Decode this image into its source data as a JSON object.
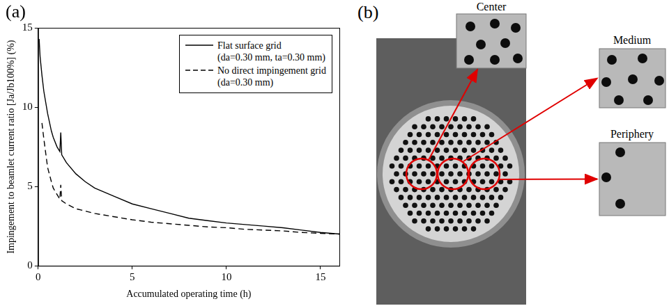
{
  "chart_data": {
    "panel": "(a)",
    "type": "line",
    "x": [
      0.05,
      0.1,
      0.2,
      0.3,
      0.5,
      0.7,
      0.8,
      1.0,
      1.15,
      1.2,
      1.25,
      1.5,
      2,
      2.5,
      3,
      4,
      5,
      6,
      7,
      8,
      9,
      10,
      11,
      12,
      13,
      14,
      15,
      16
    ],
    "series": [
      {
        "name": "Flat surface grid (da=0.30 mm, ta=0.30 mm)",
        "color": "#000000",
        "line_style": "solid",
        "values": [
          14.3,
          13.2,
          12.0,
          11.0,
          9.6,
          8.5,
          8.1,
          7.5,
          7.2,
          8.4,
          7.0,
          6.5,
          5.8,
          5.3,
          4.9,
          4.4,
          3.9,
          3.6,
          3.3,
          3.0,
          2.85,
          2.7,
          2.6,
          2.5,
          2.4,
          2.25,
          2.1,
          2.0
        ]
      },
      {
        "name": "No direct impingement grid (da=0.30 mm)",
        "color": "#000000",
        "line_style": "dashed",
        "values": [
          null,
          null,
          9.0,
          8.0,
          6.2,
          5.3,
          4.9,
          4.5,
          4.2,
          5.1,
          4.1,
          3.9,
          3.6,
          3.45,
          3.3,
          3.1,
          2.9,
          2.75,
          2.65,
          2.55,
          2.45,
          2.4,
          2.3,
          2.25,
          2.2,
          2.1,
          2.05,
          2.0
        ]
      }
    ],
    "xlabel": "Accumulated operating time (h)",
    "ylabel": "Impingement to beamlet current ratio [Ja/Jb100%] (%)",
    "xlim": [
      0,
      16
    ],
    "xticks": [
      0,
      5,
      10,
      15
    ],
    "ylim": [
      0,
      15
    ],
    "yticks": [
      0,
      5,
      10,
      15
    ],
    "grid": false,
    "legend": "upper right"
  },
  "photo": {
    "panel": "(b)",
    "insets": [
      "Center",
      "Medium",
      "Periphery"
    ]
  }
}
